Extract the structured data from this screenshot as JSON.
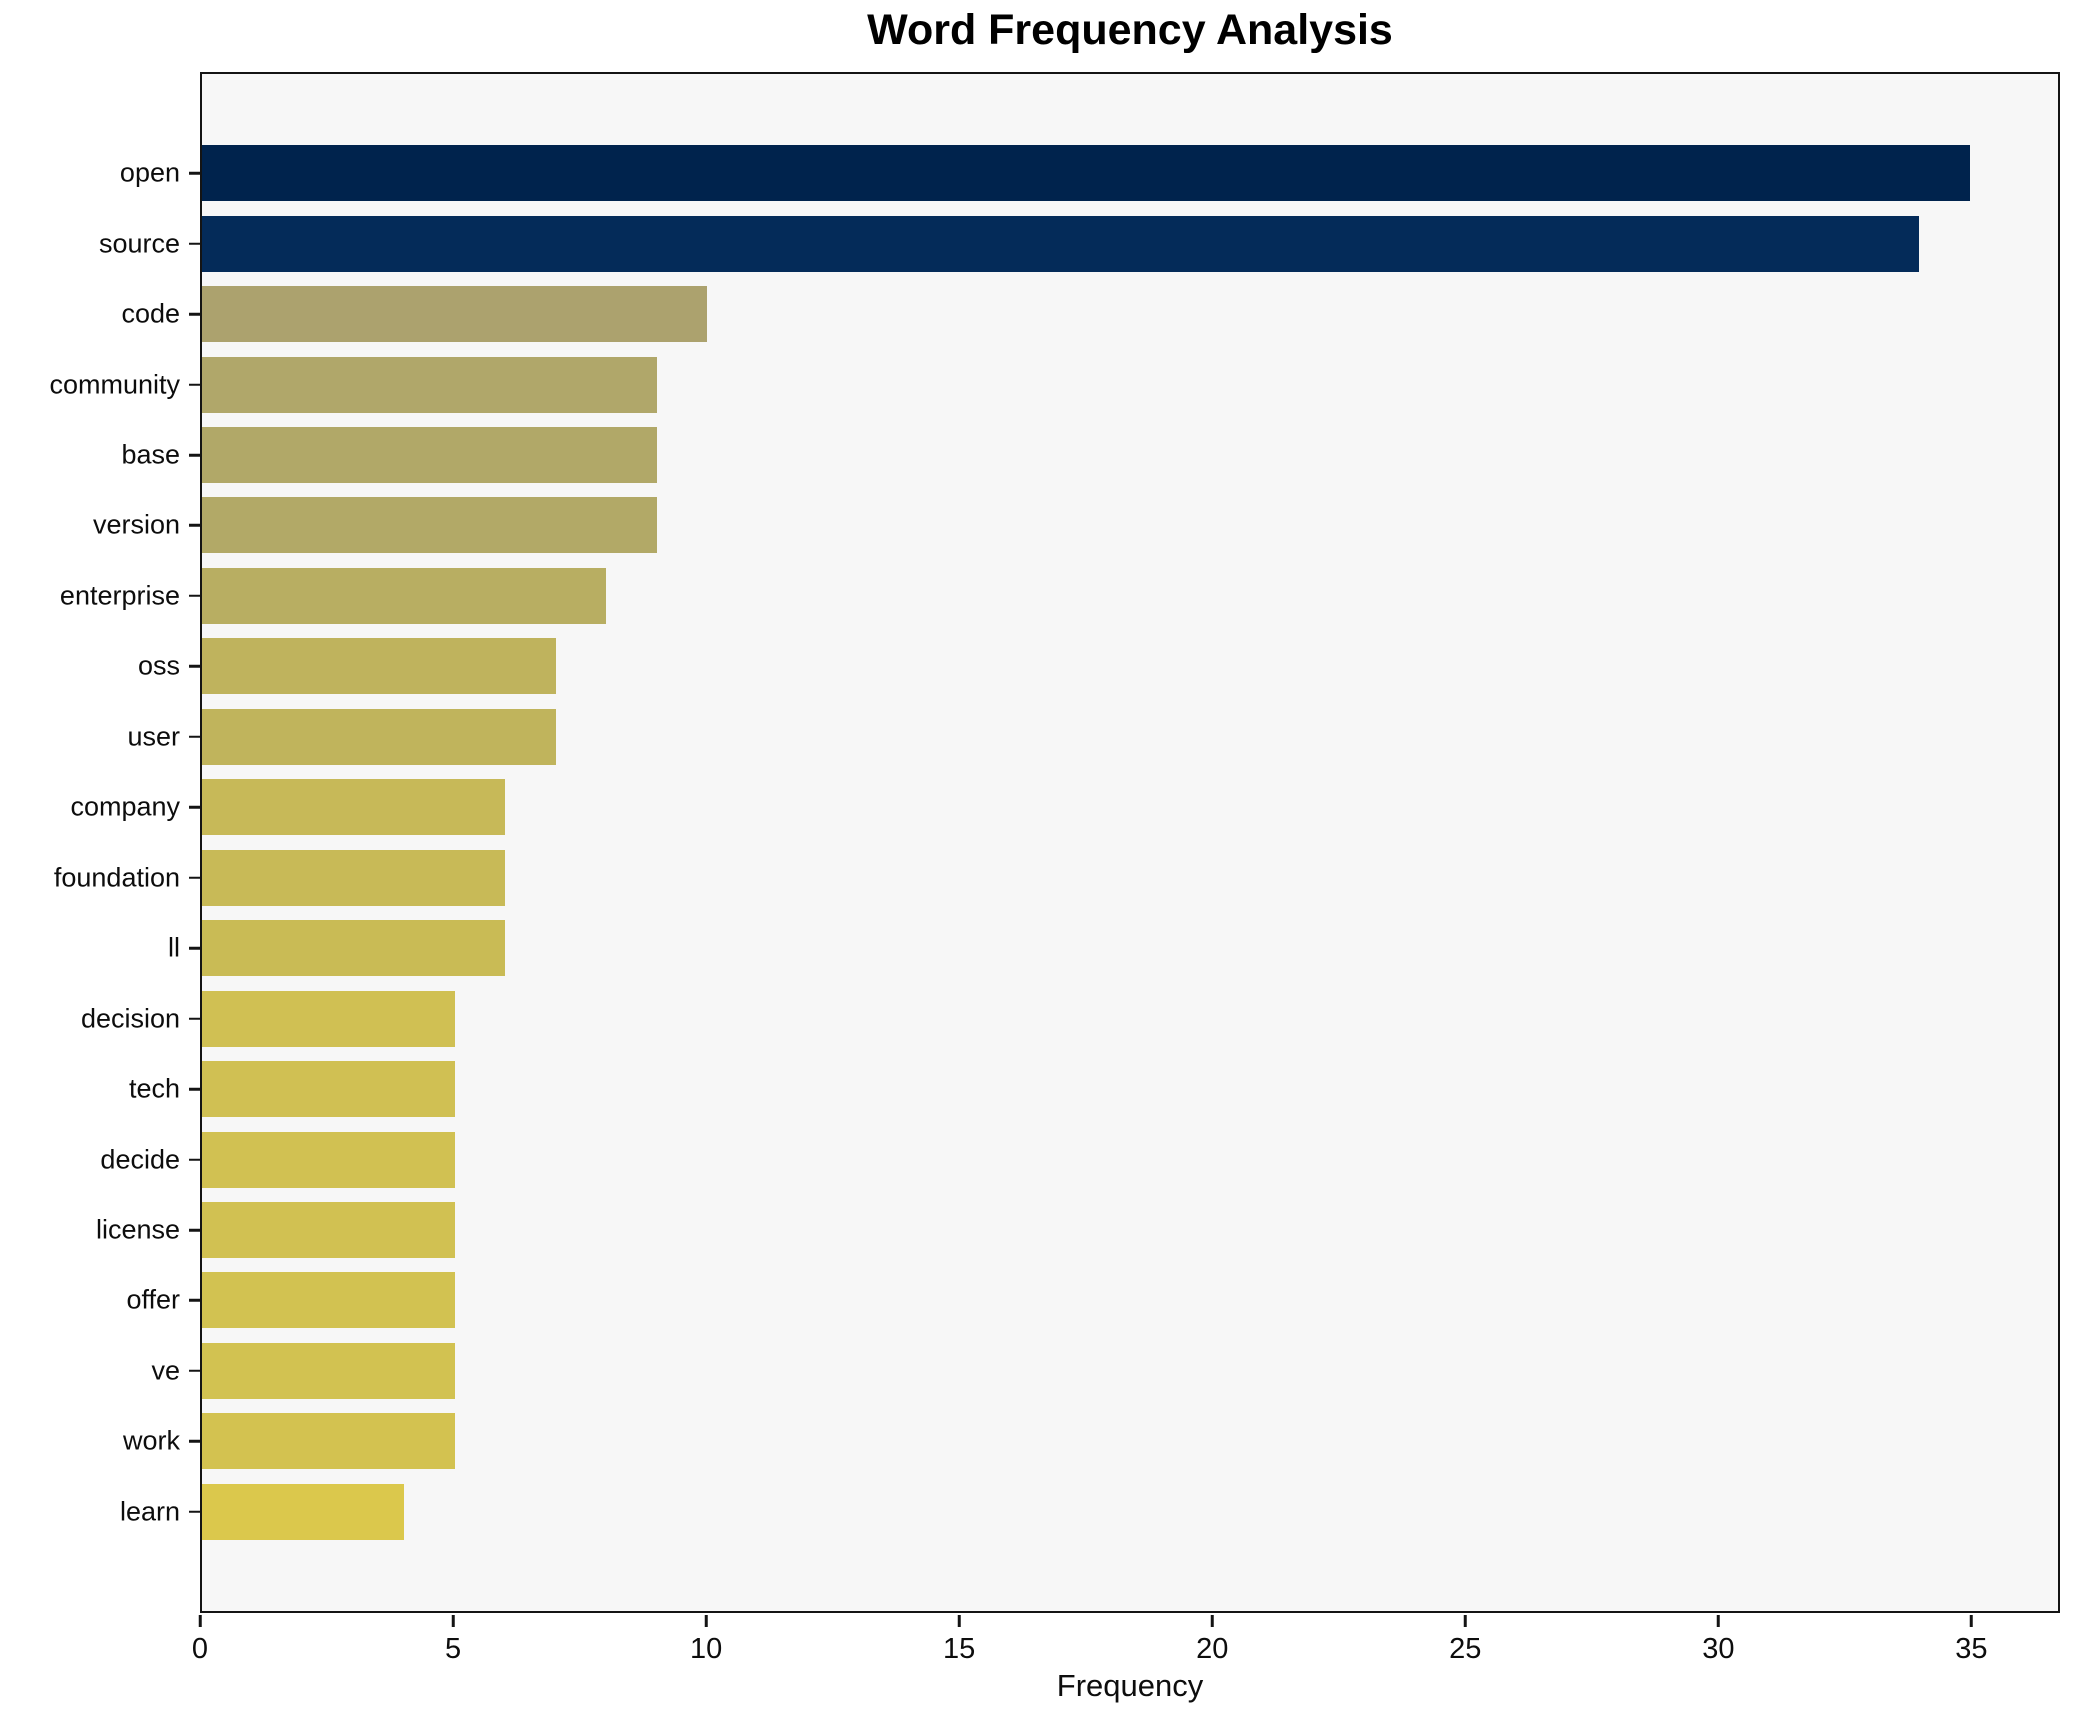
{
  "title": "Word Frequency Analysis",
  "xlabel": "Frequency",
  "chart_data": {
    "type": "bar",
    "orientation": "horizontal",
    "title": "Word Frequency Analysis",
    "xlabel": "Frequency",
    "ylabel": "",
    "grid": false,
    "legend": false,
    "plot_background": "#f7f7f7",
    "figure_background": "#ffffff",
    "spine_color": "#141414",
    "xlim": [
      0,
      36.75
    ],
    "x_ticks": [
      0,
      5,
      10,
      15,
      20,
      25,
      30,
      35
    ],
    "categories": [
      "open",
      "source",
      "code",
      "community",
      "base",
      "version",
      "enterprise",
      "oss",
      "user",
      "company",
      "foundation",
      "ll",
      "decision",
      "tech",
      "decide",
      "license",
      "offer",
      "ve",
      "work",
      "learn"
    ],
    "values": [
      35,
      34,
      10,
      9,
      9,
      9,
      8,
      7,
      7,
      6,
      6,
      6,
      5,
      5,
      5,
      5,
      5,
      5,
      5,
      4
    ],
    "bar_colors": [
      "#00234d",
      "#042b59",
      "#aca26e",
      "#b0a76a",
      "#b1a868",
      "#b2a967",
      "#b8ae62",
      "#bfb35d",
      "#c0b45c",
      "#c7b958",
      "#c8ba57",
      "#c9bb55",
      "#d0c053",
      "#d0c053",
      "#d1c152",
      "#d1c152",
      "#d2c251",
      "#d2c251",
      "#d3c250",
      "#dbc84c"
    ]
  }
}
